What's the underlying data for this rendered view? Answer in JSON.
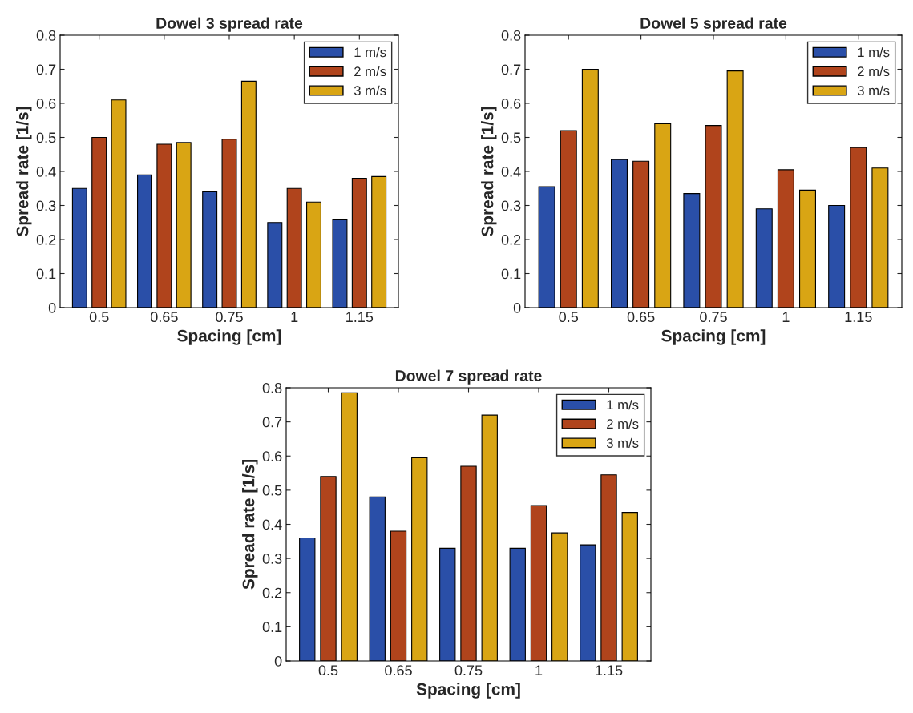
{
  "chart_data": [
    {
      "type": "bar",
      "title": "Dowel 3 spread rate",
      "xlabel": "Spacing [cm]",
      "ylabel": "Spread rate [1/s]",
      "categories": [
        "0.5",
        "0.65",
        "0.75",
        "1",
        "1.15"
      ],
      "ylim": [
        0,
        0.8
      ],
      "yticks": [
        0,
        0.1,
        0.2,
        0.3,
        0.4,
        0.5,
        0.6,
        0.7,
        0.8
      ],
      "legend": "top right",
      "grid": false,
      "series": [
        {
          "name": "1 m/s",
          "color": "#2a4fa8",
          "values": [
            0.35,
            0.39,
            0.34,
            0.25,
            0.26
          ]
        },
        {
          "name": "2 m/s",
          "color": "#b0441c",
          "values": [
            0.5,
            0.48,
            0.495,
            0.35,
            0.38
          ]
        },
        {
          "name": "3 m/s",
          "color": "#d9a514",
          "values": [
            0.61,
            0.485,
            0.665,
            0.31,
            0.385
          ]
        }
      ]
    },
    {
      "type": "bar",
      "title": "Dowel 5 spread rate",
      "xlabel": "Spacing [cm]",
      "ylabel": "Spread rate [1/s]",
      "categories": [
        "0.5",
        "0.65",
        "0.75",
        "1",
        "1.15"
      ],
      "ylim": [
        0,
        0.8
      ],
      "yticks": [
        0,
        0.1,
        0.2,
        0.3,
        0.4,
        0.5,
        0.6,
        0.7,
        0.8
      ],
      "legend": "top right",
      "grid": false,
      "series": [
        {
          "name": "1 m/s",
          "color": "#2a4fa8",
          "values": [
            0.355,
            0.435,
            0.335,
            0.29,
            0.3
          ]
        },
        {
          "name": "2 m/s",
          "color": "#b0441c",
          "values": [
            0.52,
            0.43,
            0.535,
            0.405,
            0.47
          ]
        },
        {
          "name": "3 m/s",
          "color": "#d9a514",
          "values": [
            0.7,
            0.54,
            0.695,
            0.345,
            0.41
          ]
        }
      ]
    },
    {
      "type": "bar",
      "title": "Dowel 7 spread rate",
      "xlabel": "Spacing [cm]",
      "ylabel": "Spread rate [1/s]",
      "categories": [
        "0.5",
        "0.65",
        "0.75",
        "1",
        "1.15"
      ],
      "ylim": [
        0,
        0.8
      ],
      "yticks": [
        0,
        0.1,
        0.2,
        0.3,
        0.4,
        0.5,
        0.6,
        0.7,
        0.8
      ],
      "legend": "top right",
      "grid": false,
      "series": [
        {
          "name": "1 m/s",
          "color": "#2a4fa8",
          "values": [
            0.36,
            0.48,
            0.33,
            0.33,
            0.34
          ]
        },
        {
          "name": "2 m/s",
          "color": "#b0441c",
          "values": [
            0.54,
            0.38,
            0.57,
            0.455,
            0.545
          ]
        },
        {
          "name": "3 m/s",
          "color": "#d9a514",
          "values": [
            0.785,
            0.595,
            0.72,
            0.375,
            0.435
          ]
        }
      ]
    }
  ]
}
